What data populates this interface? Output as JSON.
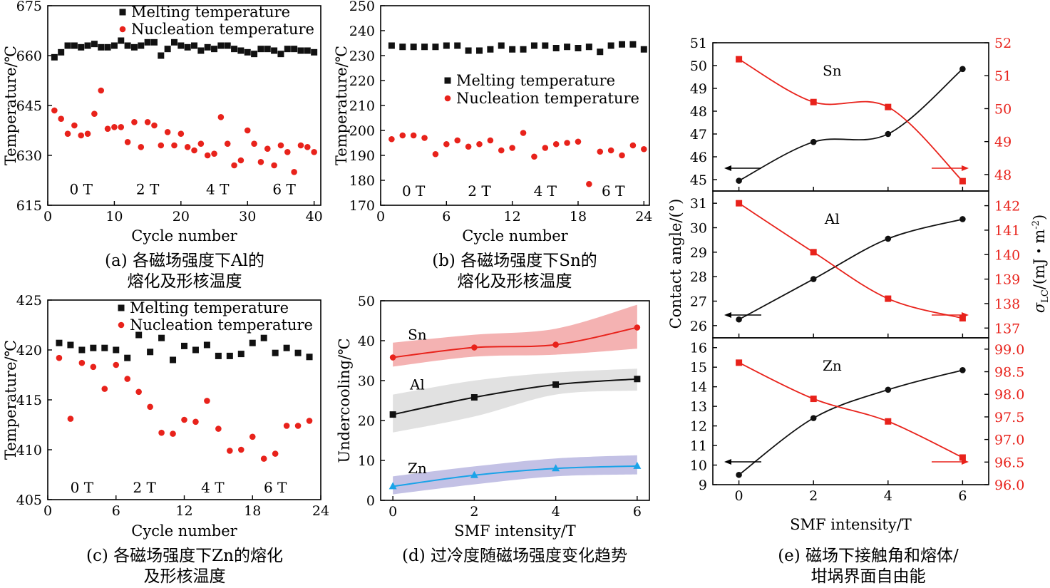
{
  "colors": {
    "black": "#111111",
    "red": "#e8221b",
    "blue": "#1aa3e8",
    "band_red": "#f2a4a4",
    "band_gray": "#dcdcdc",
    "band_blue": "#b9b6e0"
  },
  "chart_data": [
    {
      "id": "a",
      "type": "scatter",
      "xlabel": "Cycle number",
      "ylabel": "Temperature/℃",
      "xlim": [
        0,
        41
      ],
      "ylim": [
        615,
        675
      ],
      "xticks": [
        0,
        10,
        20,
        30,
        40
      ],
      "yticks": [
        615,
        630,
        645,
        660,
        675
      ],
      "caption": [
        "(a) 各磁场强度下Al的",
        "熔化及形核温度"
      ],
      "field_labels": [
        {
          "text": "0 T",
          "x": 5
        },
        {
          "text": "2 T",
          "x": 15
        },
        {
          "text": "4 T",
          "x": 25.5
        },
        {
          "text": "6 T",
          "x": 35.5
        }
      ],
      "field_label_y": 620,
      "series": [
        {
          "name": "Melting temperature",
          "marker": "square",
          "color": "#111111",
          "x": [
            1,
            2,
            3,
            4,
            5,
            6,
            7,
            8,
            9,
            10,
            11,
            12,
            13,
            14,
            15,
            16,
            17,
            18,
            19,
            20,
            21,
            22,
            23,
            24,
            25,
            26,
            27,
            28,
            29,
            30,
            31,
            32,
            33,
            34,
            35,
            36,
            37,
            38,
            39,
            40
          ],
          "y": [
            659.5,
            661,
            663,
            663,
            662.5,
            663,
            663.5,
            662.5,
            662.5,
            663,
            664.5,
            663,
            662.5,
            663,
            664,
            664,
            660,
            662,
            664,
            663,
            662.5,
            663,
            661.5,
            662.5,
            662,
            663,
            663,
            662,
            661.5,
            661,
            660.5,
            662,
            662,
            661.5,
            660.5,
            662,
            662,
            661.5,
            661.5,
            661
          ]
        },
        {
          "name": "Nucleation temperature",
          "marker": "circle",
          "color": "#e8221b",
          "x": [
            1,
            2,
            3,
            4,
            5,
            6,
            7,
            8,
            9,
            10,
            11,
            12,
            13,
            14,
            15,
            16,
            17,
            18,
            19,
            20,
            21,
            22,
            23,
            24,
            25,
            26,
            27,
            28,
            29,
            30,
            31,
            32,
            33,
            34,
            35,
            36,
            37,
            38,
            39,
            40
          ],
          "y": [
            643.5,
            641,
            636.5,
            639,
            636,
            636.5,
            642.5,
            649.5,
            638,
            638.5,
            638.5,
            634,
            640,
            632.5,
            640,
            639,
            633,
            637,
            633,
            636.5,
            632.5,
            631.5,
            633.5,
            630,
            630.5,
            641.5,
            633.5,
            627,
            628.5,
            637.5,
            633.5,
            628,
            632,
            627,
            633,
            631,
            625,
            633,
            632.5,
            631
          ]
        }
      ],
      "legend": "top"
    },
    {
      "id": "b",
      "type": "scatter",
      "xlabel": "Cycle number",
      "ylabel": "Temperature/℃",
      "xlim": [
        0,
        24.5
      ],
      "ylim": [
        170,
        250
      ],
      "xticks": [
        0,
        6,
        12,
        18,
        24
      ],
      "yticks": [
        170,
        180,
        190,
        200,
        210,
        220,
        230,
        240,
        250
      ],
      "caption": [
        "(b) 各磁场强度下Sn的",
        "熔化及形核温度"
      ],
      "field_labels": [
        {
          "text": "0 T",
          "x": 3
        },
        {
          "text": "2 T",
          "x": 9
        },
        {
          "text": "4 T",
          "x": 15
        },
        {
          "text": "6 T",
          "x": 21.2
        }
      ],
      "field_label_y": 176,
      "series": [
        {
          "name": "Melting temperature",
          "marker": "square",
          "color": "#111111",
          "x": [
            1,
            2,
            3,
            4,
            5,
            6,
            7,
            8,
            9,
            10,
            11,
            12,
            13,
            14,
            15,
            16,
            17,
            18,
            19,
            20,
            21,
            22,
            23,
            24
          ],
          "y": [
            234,
            233.5,
            233.5,
            233.5,
            233.5,
            234,
            234,
            232,
            232,
            232.5,
            234,
            232.5,
            232.5,
            234,
            234,
            233,
            233.5,
            233,
            233.5,
            231.5,
            234,
            234.5,
            234.5,
            232.5
          ]
        },
        {
          "name": "Nucleation temperature",
          "marker": "circle",
          "color": "#e8221b",
          "x": [
            1,
            2,
            3,
            4,
            5,
            6,
            7,
            8,
            9,
            10,
            11,
            12,
            13,
            14,
            15,
            16,
            17,
            18,
            19,
            20,
            21,
            22,
            23,
            24
          ],
          "y": [
            196.5,
            198,
            198,
            197,
            190.5,
            194.5,
            196,
            193.5,
            194.5,
            196,
            192,
            193,
            199,
            189.5,
            193,
            194.5,
            195,
            195.5,
            178.5,
            191.5,
            192,
            190,
            194,
            192.5
          ]
        }
      ],
      "legend": "middle-right"
    },
    {
      "id": "c",
      "type": "scatter",
      "xlabel": "Cycle number",
      "ylabel": "Temperature/℃",
      "xlim": [
        0,
        24
      ],
      "ylim": [
        405,
        425
      ],
      "xticks": [
        0,
        6,
        12,
        18,
        24
      ],
      "yticks": [
        405,
        410,
        415,
        420,
        425
      ],
      "caption": [
        "(c) 各磁场强度下Zn的熔化",
        "及形核温度"
      ],
      "field_labels": [
        {
          "text": "0 T",
          "x": 3
        },
        {
          "text": "2 T",
          "x": 8.5
        },
        {
          "text": "4 T",
          "x": 14.5
        },
        {
          "text": "6 T",
          "x": 20
        }
      ],
      "field_label_y": 406.3,
      "series": [
        {
          "name": "Melting temperature",
          "marker": "square",
          "color": "#111111",
          "x": [
            1,
            2,
            3,
            4,
            5,
            6,
            7,
            8,
            9,
            10,
            11,
            12,
            13,
            14,
            15,
            16,
            17,
            18,
            19,
            20,
            21,
            22,
            23
          ],
          "y": [
            420.7,
            420.5,
            420,
            420.2,
            420.2,
            420,
            419.2,
            421.5,
            419.8,
            421.2,
            419,
            420.4,
            420,
            420.5,
            419.4,
            419.4,
            419.6,
            420.7,
            421.2,
            419.7,
            420.2,
            419.7,
            419.3
          ]
        },
        {
          "name": "Nucleation temperature",
          "marker": "circle",
          "color": "#e8221b",
          "x": [
            1,
            2,
            3,
            4,
            5,
            6,
            7,
            8,
            9,
            10,
            11,
            12,
            13,
            14,
            15,
            16,
            17,
            18,
            19,
            20,
            21,
            22,
            23
          ],
          "y": [
            419.2,
            413.1,
            418.7,
            418.3,
            416.1,
            418.5,
            417.1,
            415.8,
            414.3,
            411.7,
            411.6,
            413,
            412.8,
            414.9,
            412.1,
            409.9,
            410,
            411.3,
            409.1,
            409.6,
            412.4,
            412.4,
            412.9
          ]
        }
      ],
      "legend": "top"
    },
    {
      "id": "d",
      "type": "line",
      "xlabel": "SMF intensity/T",
      "ylabel": "Undercooling/℃",
      "xlim": [
        -0.3,
        6.3
      ],
      "ylim": [
        0,
        50
      ],
      "xticks": [
        0,
        2,
        4,
        6
      ],
      "yticks": [
        0,
        10,
        20,
        30,
        40,
        50
      ],
      "caption": [
        "(d) 过冷度随磁场强度变化趋势"
      ],
      "series": [
        {
          "name": "Sn",
          "label_pos": [
            0.6,
            41.5
          ],
          "marker": "circle",
          "color": "#e8221b",
          "band_color": "#f2a4a4",
          "x": [
            0,
            2,
            4,
            6
          ],
          "y": [
            35.8,
            38.3,
            39,
            43.3
          ],
          "band_upper": [
            39.5,
            41.5,
            43,
            49
          ],
          "band_lower": [
            33.5,
            36,
            36.5,
            38
          ]
        },
        {
          "name": "Al",
          "label_pos": [
            0.6,
            29
          ],
          "marker": "square",
          "color": "#111111",
          "band_color": "#dcdcdc",
          "x": [
            0,
            2,
            4,
            6
          ],
          "y": [
            21.5,
            25.8,
            29,
            30.4
          ],
          "band_upper": [
            26.5,
            30,
            32,
            33
          ],
          "band_lower": [
            17,
            21,
            26.5,
            27.5
          ]
        },
        {
          "name": "Zn",
          "label_pos": [
            0.6,
            8
          ],
          "marker": "triangle",
          "color": "#1aa3e8",
          "band_color": "#b9b6e0",
          "x": [
            0,
            2,
            4,
            6
          ],
          "y": [
            3.5,
            6.3,
            8,
            8.6
          ],
          "band_upper": [
            6,
            8.5,
            10.5,
            11.3
          ],
          "band_lower": [
            1.5,
            4,
            6,
            6.5
          ]
        }
      ]
    },
    {
      "id": "e",
      "type": "line",
      "xlabel": "SMF intensity/T",
      "ylabel_left": "Contact angle/(°)",
      "ylabel_right_main": "σ",
      "ylabel_right_sub": "LC",
      "ylabel_right_unit": "/(mJ・m",
      "ylabel_right_sup": "-2",
      "ylabel_right_close": ")",
      "xlim": [
        -0.7,
        6.7
      ],
      "xticks": [
        0,
        2,
        4,
        6
      ],
      "caption": [
        "(e) 磁场下接触角和熔体/",
        "坩埚界面自由能"
      ],
      "panels": [
        {
          "name": "Sn",
          "left": {
            "ylim": [
              44.5,
              51
            ],
            "yticks": [
              45,
              46,
              47,
              48,
              49,
              50,
              51
            ],
            "x": [
              0,
              2,
              4,
              6
            ],
            "y": [
              44.95,
              46.65,
              47,
              49.85
            ]
          },
          "right": {
            "ylim": [
              47.5,
              52
            ],
            "yticks": [
              48,
              49,
              50,
              51,
              52
            ],
            "x": [
              0,
              2,
              4,
              6
            ],
            "y": [
              51.5,
              50.2,
              50.05,
              47.8
            ]
          }
        },
        {
          "name": "Al",
          "left": {
            "ylim": [
              25.5,
              31.5
            ],
            "yticks": [
              26,
              27,
              28,
              29,
              30,
              31
            ],
            "x": [
              0,
              2,
              4,
              6
            ],
            "y": [
              26.25,
              27.9,
              29.55,
              30.35
            ]
          },
          "right": {
            "ylim": [
              136.6,
              142.6
            ],
            "yticks": [
              137,
              138,
              139,
              140,
              141,
              142
            ],
            "x": [
              0,
              2,
              4,
              6
            ],
            "y": [
              142.1,
              140.1,
              138.2,
              137.4
            ]
          }
        },
        {
          "name": "Zn",
          "left": {
            "ylim": [
              9,
              16.5
            ],
            "yticks": [
              9,
              10,
              11,
              12,
              13,
              14,
              15,
              16
            ],
            "x": [
              0,
              2,
              4,
              6
            ],
            "y": [
              9.5,
              12.4,
              13.85,
              14.85
            ]
          },
          "right": {
            "ylim": [
              96,
              99.25
            ],
            "yticks": [
              96,
              96.5,
              97,
              97.5,
              98,
              98.5,
              99
            ],
            "ytick_labels": [
              "96.0",
              "96.5",
              "97.0",
              "97.5",
              "98.0",
              "98.5",
              "99.0"
            ],
            "x": [
              0,
              2,
              4,
              6
            ],
            "y": [
              98.7,
              97.9,
              97.4,
              96.6
            ]
          }
        }
      ]
    }
  ]
}
